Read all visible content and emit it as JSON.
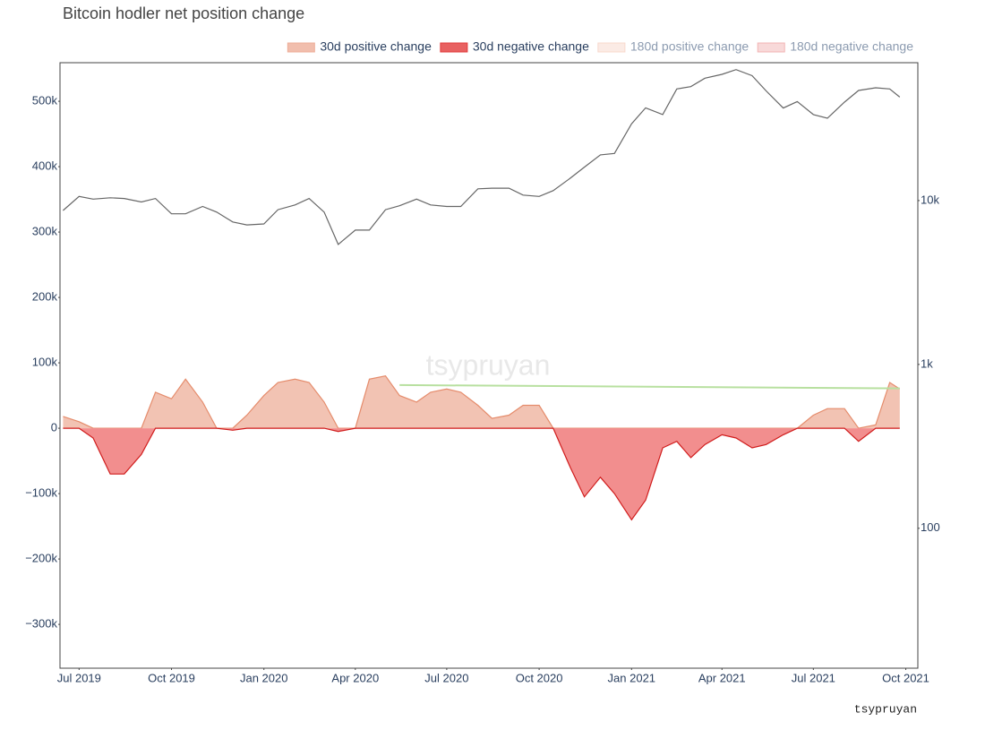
{
  "chart_data": {
    "type": "area",
    "title": "Bitcoin hodler net position change",
    "watermark": "tsypruyan",
    "credit": "tsypruyan",
    "legend": [
      {
        "name": "30d positive change",
        "color": "#eeae98",
        "hidden": false
      },
      {
        "name": "30d negative change",
        "color": "#e23a3a",
        "hidden": false
      },
      {
        "name": "180d positive change",
        "color": "#f8d8cc",
        "hidden": true
      },
      {
        "name": "180d negative change",
        "color": "#f2b4b4",
        "hidden": true
      }
    ],
    "x": [
      "2019-06-15",
      "2019-07-01",
      "2019-07-15",
      "2019-08-01",
      "2019-08-15",
      "2019-09-01",
      "2019-09-15",
      "2019-10-01",
      "2019-10-15",
      "2019-11-01",
      "2019-11-15",
      "2019-12-01",
      "2019-12-15",
      "2020-01-01",
      "2020-01-15",
      "2020-02-01",
      "2020-02-15",
      "2020-03-01",
      "2020-03-15",
      "2020-04-01",
      "2020-04-15",
      "2020-05-01",
      "2020-05-15",
      "2020-06-01",
      "2020-06-15",
      "2020-07-01",
      "2020-07-15",
      "2020-08-01",
      "2020-08-15",
      "2020-09-01",
      "2020-09-15",
      "2020-10-01",
      "2020-10-15",
      "2020-11-01",
      "2020-11-15",
      "2020-12-01",
      "2020-12-15",
      "2021-01-01",
      "2021-01-15",
      "2021-02-01",
      "2021-02-15",
      "2021-03-01",
      "2021-03-15",
      "2021-04-01",
      "2021-04-15",
      "2021-05-01",
      "2021-05-15",
      "2021-06-01",
      "2021-06-15",
      "2021-07-01",
      "2021-07-15",
      "2021-08-01",
      "2021-08-15",
      "2021-09-01",
      "2021-09-15",
      "2021-09-25"
    ],
    "series": [
      {
        "kind": "positive",
        "legend": 0,
        "fill": "#f2c3b3",
        "color": "#e58c6c",
        "values": [
          18000,
          10000,
          0,
          0,
          0,
          0,
          55000,
          45000,
          75000,
          40000,
          0,
          0,
          20000,
          50000,
          70000,
          75000,
          70000,
          40000,
          0,
          0,
          75000,
          80000,
          50000,
          40000,
          55000,
          60000,
          55000,
          35000,
          15000,
          20000,
          35000,
          35000,
          0,
          0,
          0,
          0,
          0,
          0,
          0,
          0,
          0,
          0,
          0,
          0,
          0,
          0,
          0,
          0,
          0,
          20000,
          30000,
          30000,
          0,
          5000,
          70000,
          60000
        ]
      },
      {
        "kind": "negative",
        "legend": 1,
        "fill": "#f28e8e",
        "color": "#d01c1c",
        "values": [
          0,
          0,
          -15000,
          -70000,
          -70000,
          -40000,
          0,
          0,
          0,
          0,
          0,
          -3000,
          0,
          0,
          0,
          0,
          0,
          0,
          -5000,
          0,
          0,
          0,
          0,
          0,
          0,
          0,
          0,
          0,
          0,
          0,
          0,
          0,
          0,
          -60000,
          -105000,
          -75000,
          -100000,
          -140000,
          -110000,
          -30000,
          -20000,
          -45000,
          -25000,
          -10000,
          -15000,
          -30000,
          -25000,
          -10000,
          0,
          0,
          0,
          0,
          -20000,
          0,
          0,
          0
        ]
      },
      {
        "kind": "price",
        "axis": "y2",
        "color": "#666666",
        "values": [
          8700,
          10600,
          10200,
          10400,
          10300,
          9800,
          10300,
          8300,
          8300,
          9200,
          8500,
          7400,
          7100,
          7200,
          8800,
          9400,
          10300,
          8500,
          5400,
          6600,
          6600,
          8800,
          9300,
          10200,
          9400,
          9200,
          9200,
          11800,
          11900,
          11900,
          10800,
          10600,
          11500,
          13700,
          16000,
          19000,
          19400,
          29400,
          36800,
          33500,
          48000,
          49600,
          55800,
          58900,
          63000,
          57800,
          46700,
          36700,
          40200,
          33500,
          31800,
          39900,
          47000,
          48800,
          48000,
          42800
        ]
      }
    ],
    "trend_line": {
      "color": "#b8e0a0",
      "x": [
        "2020-05-15",
        "2021-09-25"
      ],
      "values": [
        66000,
        61000
      ]
    },
    "xlim": [
      "2019-06-12",
      "2021-10-13"
    ],
    "xticks": [
      {
        "value": "2019-07-01",
        "label": "Jul 2019"
      },
      {
        "value": "2019-10-01",
        "label": "Oct 2019"
      },
      {
        "value": "2020-01-01",
        "label": "Jan 2020"
      },
      {
        "value": "2020-04-01",
        "label": "Apr 2020"
      },
      {
        "value": "2020-07-01",
        "label": "Jul 2020"
      },
      {
        "value": "2020-10-01",
        "label": "Oct 2020"
      },
      {
        "value": "2021-01-01",
        "label": "Jan 2021"
      },
      {
        "value": "2021-04-01",
        "label": "Apr 2021"
      },
      {
        "value": "2021-07-01",
        "label": "Jul 2021"
      },
      {
        "value": "2021-10-01",
        "label": "Oct 2021"
      }
    ],
    "ylim": [
      -367000,
      559000
    ],
    "yticks": [
      {
        "value": -300000,
        "label": "−300k"
      },
      {
        "value": -200000,
        "label": "−200k"
      },
      {
        "value": -100000,
        "label": "−100k"
      },
      0,
      {
        "value": 100000,
        "label": "100k"
      },
      {
        "value": 200000,
        "label": "200k"
      },
      {
        "value": 300000,
        "label": "300k"
      },
      {
        "value": 400000,
        "label": "400k"
      },
      {
        "value": 500000,
        "label": "500k"
      }
    ],
    "y2lim": [
      14,
      69400
    ],
    "y2ticks": [
      100,
      {
        "value": 1000,
        "label": "1k"
      },
      {
        "value": 10000,
        "label": "10k"
      }
    ],
    "y2log": true,
    "grid": false
  }
}
